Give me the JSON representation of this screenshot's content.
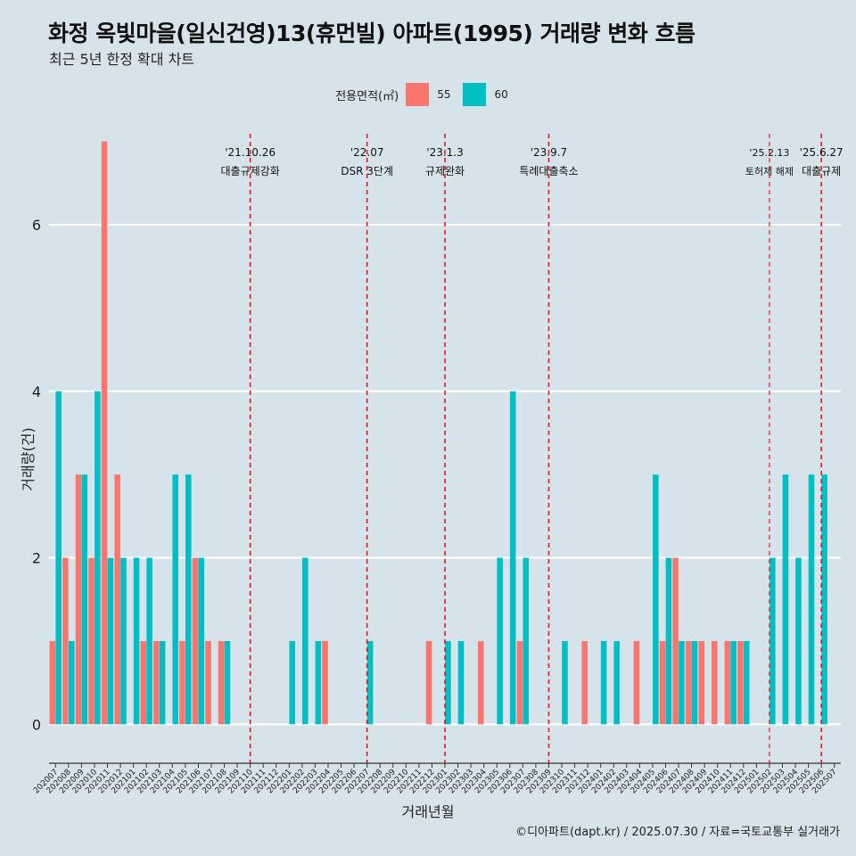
{
  "chart_data": {
    "type": "bar",
    "title": "화정 옥빛마을(일신건영)13(휴먼빌) 아파트(1995) 거래량 변화 흐름",
    "subtitle": "최근 5년 한정 확대 차트",
    "xlabel": "거래년월",
    "ylabel": "거래량(건)",
    "caption": "©디아파트(dapt.kr) / 2025.07.30 / 자료=국토교통부 실거래가",
    "legend_title": "전용면적(㎡)",
    "legend_position": "top",
    "ylim": [
      -0.35,
      7.2
    ],
    "yticks": [
      0,
      2,
      4,
      6
    ],
    "grid": true,
    "categories": [
      "202007",
      "202008",
      "202009",
      "202010",
      "202011",
      "202012",
      "202101",
      "202102",
      "202103",
      "202104",
      "202105",
      "202106",
      "202107",
      "202108",
      "202109",
      "202110",
      "202111",
      "202112",
      "202201",
      "202202",
      "202203",
      "202204",
      "202205",
      "202206",
      "202207",
      "202208",
      "202209",
      "202210",
      "202211",
      "202212",
      "202301",
      "202302",
      "202303",
      "202304",
      "202305",
      "202306",
      "202307",
      "202308",
      "202309",
      "202310",
      "202311",
      "202312",
      "202401",
      "202402",
      "202403",
      "202404",
      "202405",
      "202406",
      "202407",
      "202408",
      "202409",
      "202410",
      "202411",
      "202412",
      "202501",
      "202502",
      "202503",
      "202504",
      "202505",
      "202506",
      "202507"
    ],
    "series": [
      {
        "name": "55",
        "color": "#F8766D",
        "values": [
          1,
          2,
          3,
          2,
          7,
          3,
          0,
          1,
          1,
          0,
          1,
          2,
          1,
          1,
          0,
          0,
          0,
          0,
          0,
          0,
          0,
          1,
          0,
          0,
          0,
          0,
          0,
          0,
          0,
          1,
          0,
          0,
          0,
          1,
          0,
          0,
          1,
          0,
          0,
          0,
          0,
          1,
          0,
          0,
          0,
          1,
          0,
          1,
          2,
          1,
          1,
          1,
          1,
          1,
          0,
          0,
          0,
          0,
          0,
          0,
          0
        ]
      },
      {
        "name": "60",
        "color": "#00BFC4",
        "values": [
          4,
          1,
          3,
          4,
          2,
          2,
          2,
          2,
          1,
          3,
          3,
          2,
          0,
          1,
          0,
          0,
          0,
          0,
          1,
          2,
          1,
          0,
          0,
          0,
          1,
          0,
          0,
          0,
          0,
          0,
          1,
          1,
          0,
          0,
          2,
          4,
          2,
          0,
          0,
          1,
          0,
          0,
          1,
          1,
          0,
          0,
          3,
          2,
          1,
          1,
          0,
          0,
          1,
          1,
          0,
          2,
          3,
          2,
          3,
          3,
          0
        ]
      }
    ],
    "annotations": [
      {
        "at": "202110",
        "date": "'21.10.26",
        "label": "대출규제강화"
      },
      {
        "at": "202207",
        "date": "'22.07",
        "label": "DSR 3단계"
      },
      {
        "at": "202301",
        "date": "'23.1.3",
        "label": "규제완화"
      },
      {
        "at": "202309",
        "date": "'23.9.7",
        "label": "특례대출축소"
      },
      {
        "at": "202502",
        "date": "'25.2.13",
        "label": "토허제 해제"
      },
      {
        "at": "202506",
        "date": "'25.6.27",
        "label": "대출규제"
      }
    ]
  }
}
